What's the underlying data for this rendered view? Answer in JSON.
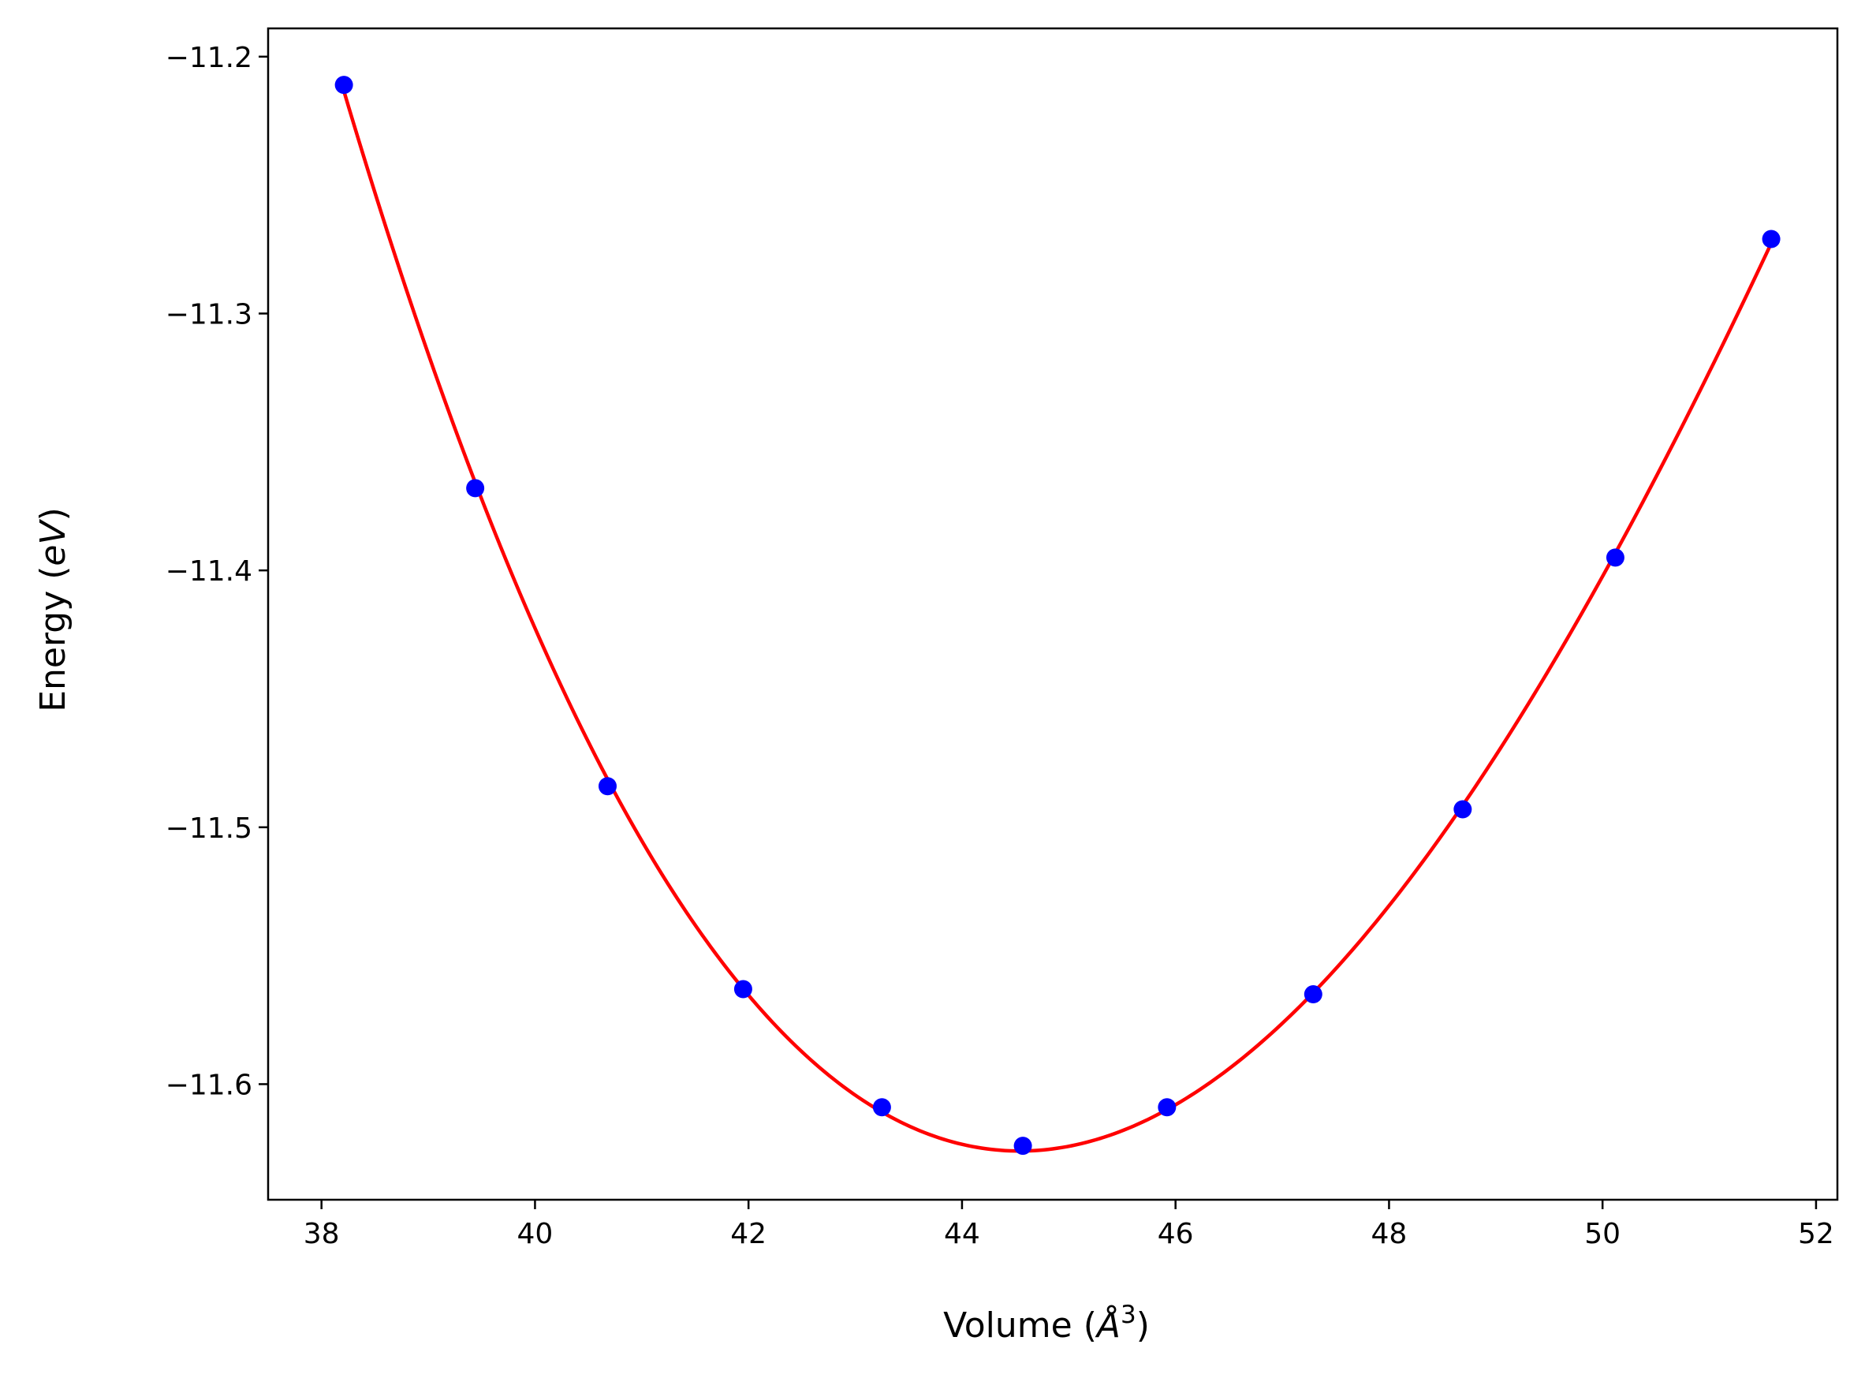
{
  "chart_data": {
    "type": "line",
    "title": "",
    "xlabel": {
      "prefix": "Volume (",
      "symbol": "Å",
      "superscript": "3",
      "suffix": ")"
    },
    "ylabel": {
      "prefix": "Energy (",
      "symbol": "eV",
      "suffix": ")"
    },
    "xlim": [
      37.5,
      52.2
    ],
    "ylim": [
      -11.645,
      -11.189
    ],
    "xticks": [
      38,
      40,
      42,
      44,
      46,
      48,
      50,
      52
    ],
    "yticks": [
      -11.2,
      -11.3,
      -11.4,
      -11.5,
      -11.6
    ],
    "ytick_labels": [
      "−11.2",
      "−11.3",
      "−11.4",
      "−11.5",
      "−11.6"
    ],
    "grid": false,
    "series": [
      {
        "type": "scatter",
        "color": "#0000ff",
        "x": [
          38.21,
          39.44,
          40.68,
          41.95,
          43.25,
          44.57,
          45.92,
          47.29,
          48.69,
          50.12,
          51.58
        ],
        "y": [
          -11.211,
          -11.368,
          -11.484,
          -11.563,
          -11.609,
          -11.624,
          -11.609,
          -11.565,
          -11.493,
          -11.395,
          -11.271
        ]
      },
      {
        "type": "line",
        "color": "#ff0000",
        "fit_of_series": 0,
        "x_range": [
          38.21,
          51.58
        ]
      }
    ]
  }
}
